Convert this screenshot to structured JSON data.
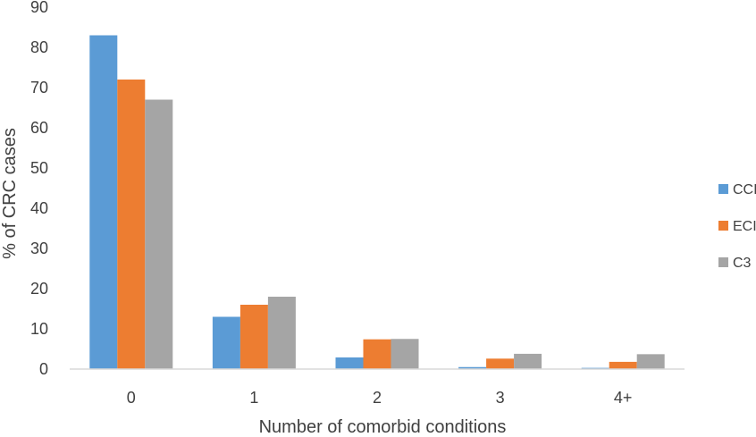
{
  "chart_data": {
    "type": "bar",
    "title": "",
    "xlabel": "Number of comorbid conditions",
    "ylabel": "% of CRC cases",
    "categories": [
      "0",
      "1",
      "2",
      "3",
      "4+"
    ],
    "ylim": [
      0,
      90
    ],
    "yticks": [
      "0",
      "10",
      "20",
      "30",
      "40",
      "50",
      "60",
      "70",
      "80",
      "90"
    ],
    "grid": false,
    "legend_position": "right",
    "series": [
      {
        "name": "CCI",
        "color": "#5b9bd5",
        "values": [
          83,
          13,
          2.9,
          0.5,
          0.3
        ]
      },
      {
        "name": "ECI",
        "color": "#ed7d31",
        "values": [
          72,
          16,
          7.4,
          2.6,
          1.8
        ]
      },
      {
        "name": "C3",
        "color": "#a5a5a5",
        "values": [
          67,
          18,
          7.5,
          3.8,
          3.7
        ]
      }
    ]
  }
}
